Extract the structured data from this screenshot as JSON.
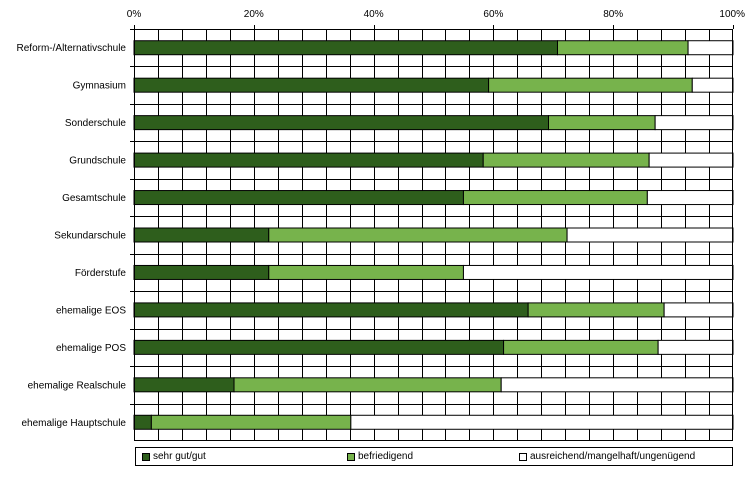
{
  "chart_data": {
    "type": "bar",
    "orientation": "horizontal",
    "stacked": "percent",
    "categories": [
      "Reform-/Alternativschule",
      "Gymnasium",
      "Sonderschule",
      "Grundschule",
      "Gesamtschule",
      "Sekundarschule",
      "Förderstufe",
      "ehemalige EOS",
      "ehemalige POS",
      "ehemalige Realschule",
      "ehemalige Hauptschule"
    ],
    "series": [
      {
        "name": "sehr gut/gut",
        "color": "#2e5e1c",
        "values": [
          70.7,
          59.2,
          69.2,
          58.3,
          55.0,
          22.5,
          22.5,
          65.8,
          61.7,
          16.7,
          2.9
        ]
      },
      {
        "name": "befriedigend",
        "color": "#77b34c",
        "values": [
          21.8,
          34.0,
          17.8,
          27.7,
          30.7,
          49.8,
          32.5,
          22.7,
          25.8,
          44.6,
          33.3
        ]
      },
      {
        "name": "ausreichend/mangelhaft/ungenügend",
        "color": "#ffffff",
        "values": [
          7.5,
          6.8,
          13.0,
          14.0,
          14.3,
          27.7,
          45.0,
          11.5,
          12.5,
          38.7,
          63.8
        ]
      }
    ],
    "x_ticks": [
      "0%",
      "20%",
      "40%",
      "60%",
      "80%",
      "100%"
    ],
    "xlim": [
      0,
      100
    ],
    "grid": true,
    "legend_position": "bottom"
  }
}
